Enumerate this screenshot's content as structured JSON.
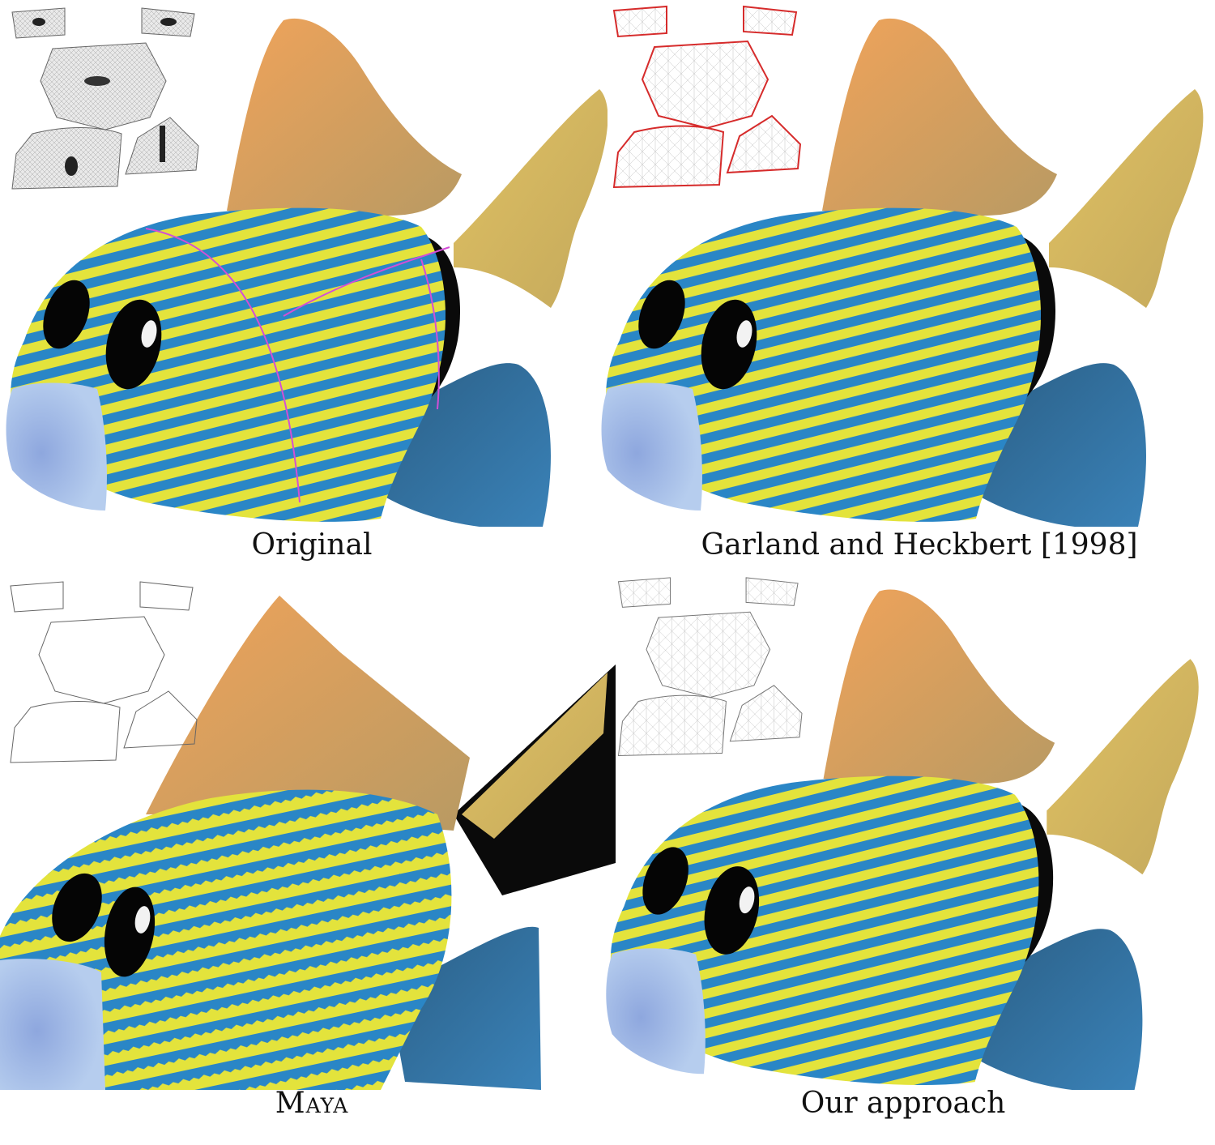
{
  "figure": {
    "panels": [
      {
        "caption": "Original"
      },
      {
        "caption": "Garland and Heckbert [1998]"
      },
      {
        "caption": "Maya"
      },
      {
        "caption": "Our approach"
      }
    ]
  },
  "colors": {
    "stripe_blue": "#2a86c6",
    "stripe_yellow": "#e3e33c",
    "fin_orange": "#d99a52",
    "tail_blue": "#2c6f9c",
    "mouth": "#a9c4ea",
    "seam_magenta": "#d34fd6",
    "error_red": "#d62b2b"
  }
}
